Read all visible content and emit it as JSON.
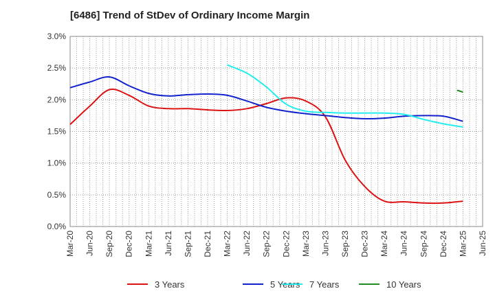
{
  "title": "[6486]  Trend of StDev of Ordinary Income Margin",
  "chart_data": {
    "type": "line",
    "title": "[6486]  Trend of StDev of Ordinary Income Margin",
    "xlabel": "",
    "ylabel": "",
    "grid": true,
    "legend_position": "bottom",
    "x_tick_labels": [
      "Mar-20",
      "Jun-20",
      "Sep-20",
      "Dec-20",
      "Mar-21",
      "Jun-21",
      "Sep-21",
      "Dec-21",
      "Mar-22",
      "Jun-22",
      "Sep-22",
      "Dec-22",
      "Mar-23",
      "Jun-23",
      "Sep-23",
      "Dec-23",
      "Mar-24",
      "Jun-24",
      "Sep-24",
      "Dec-24",
      "Mar-25",
      "Jun-25"
    ],
    "y_tick_labels": [
      "0.0%",
      "0.5%",
      "1.0%",
      "1.5%",
      "2.0%",
      "2.5%",
      "3.0%"
    ],
    "y_ticks": [
      0,
      0.5,
      1.0,
      1.5,
      2.0,
      2.5,
      3.0
    ],
    "ylim": [
      0,
      3.0
    ],
    "series": [
      {
        "name": "3 Years",
        "color": "#dd1111",
        "values": [
          1.61,
          1.9,
          2.16,
          2.07,
          1.9,
          1.86,
          1.86,
          1.84,
          1.83,
          1.86,
          1.94,
          2.03,
          1.98,
          1.73,
          1.05,
          0.63,
          0.4,
          0.39,
          0.37,
          0.37,
          0.4,
          null
        ]
      },
      {
        "name": "5 Years",
        "color": "#1122cc",
        "values": [
          2.19,
          2.28,
          2.36,
          2.22,
          2.1,
          2.06,
          2.08,
          2.09,
          2.07,
          1.98,
          1.88,
          1.82,
          1.78,
          1.75,
          1.72,
          1.7,
          1.71,
          1.74,
          1.75,
          1.74,
          1.66,
          null
        ]
      },
      {
        "name": "7 Years",
        "color": "#22eeee",
        "values": [
          null,
          null,
          null,
          null,
          null,
          null,
          null,
          null,
          2.55,
          2.42,
          2.2,
          1.93,
          1.82,
          1.8,
          1.79,
          1.79,
          1.79,
          1.77,
          1.69,
          1.62,
          1.57,
          null
        ]
      },
      {
        "name": "10 Years",
        "color": "#228822",
        "values": [
          null,
          null,
          null,
          null,
          null,
          null,
          null,
          null,
          null,
          null,
          null,
          null,
          null,
          null,
          null,
          null,
          null,
          null,
          null,
          null,
          2.12,
          null
        ],
        "segment_start": 2.15
      }
    ]
  }
}
